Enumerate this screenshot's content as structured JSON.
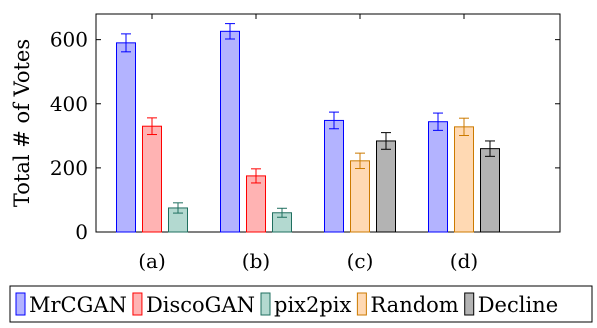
{
  "chart_data": {
    "type": "bar",
    "title": "",
    "xlabel": "",
    "ylabel": "Total # of Votes",
    "ylim": [
      0,
      680
    ],
    "yticks": [
      0,
      200,
      400,
      600
    ],
    "categories": [
      "(a)",
      "(b)",
      "(c)",
      "(d)"
    ],
    "series": [
      {
        "name": "MrCGAN",
        "values": [
          590,
          626,
          348,
          344
        ],
        "errors": [
          28,
          24,
          26,
          27
        ],
        "fill": "#b3b3ff",
        "stroke": "#0000ff"
      },
      {
        "name": "DiscoGAN",
        "values": [
          330,
          175,
          null,
          null
        ],
        "errors": [
          26,
          22,
          null,
          null
        ],
        "fill": "#ffb3b3",
        "stroke": "#ff0000"
      },
      {
        "name": "pix2pix",
        "values": [
          75,
          60,
          null,
          null
        ],
        "errors": [
          16,
          14,
          null,
          null
        ],
        "fill": "#b3d9d0",
        "stroke": "#1f6f5f"
      },
      {
        "name": "Random",
        "values": [
          null,
          null,
          222,
          328
        ],
        "errors": [
          null,
          null,
          24,
          27
        ],
        "fill": "#ffd9b3",
        "stroke": "#cc7a00"
      },
      {
        "name": "Decline",
        "values": [
          null,
          null,
          284,
          260
        ],
        "errors": [
          null,
          null,
          26,
          24
        ],
        "fill": "#b3b3b3",
        "stroke": "#000000"
      }
    ],
    "legend_position": "bottom",
    "grid": false
  }
}
